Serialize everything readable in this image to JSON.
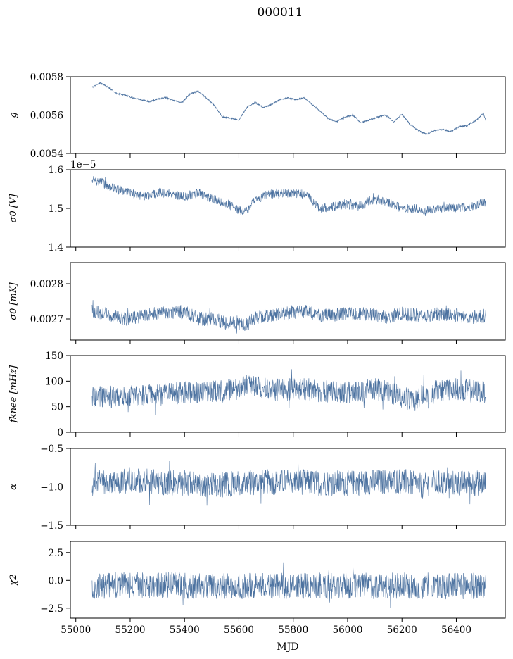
{
  "figure": {
    "title": "000011",
    "xlabel": "MJD",
    "series_color": "#4c72a0"
  },
  "chart_data": [
    {
      "type": "line",
      "ylabel": "g",
      "ylim": [
        0.0054,
        0.0058
      ],
      "yticks": [
        0.0054,
        0.0056,
        0.0058
      ],
      "ytick_labels": [
        "0.0054",
        "0.0056",
        "0.0058"
      ],
      "xlim": [
        54980,
        56580
      ],
      "x_range": [
        55060,
        56510
      ],
      "band": 3.5e-06,
      "x": [
        55060,
        55090,
        55120,
        55150,
        55180,
        55210,
        55240,
        55270,
        55300,
        55330,
        55360,
        55390,
        55420,
        55450,
        55480,
        55510,
        55540,
        55570,
        55600,
        55630,
        55660,
        55690,
        55720,
        55750,
        55780,
        55810,
        55840,
        55870,
        55900,
        55930,
        55960,
        55990,
        56020,
        56050,
        56080,
        56110,
        56140,
        56170,
        56200,
        56230,
        56260,
        56290,
        56320,
        56350,
        56380,
        56410,
        56440,
        56470,
        56500,
        56510
      ],
      "y": [
        0.005745,
        0.005768,
        0.005745,
        0.005712,
        0.005705,
        0.00569,
        0.00568,
        0.00567,
        0.005683,
        0.005692,
        0.005675,
        0.005665,
        0.00571,
        0.005725,
        0.00569,
        0.00565,
        0.00559,
        0.005585,
        0.005575,
        0.00564,
        0.005665,
        0.00564,
        0.005655,
        0.00568,
        0.00569,
        0.00568,
        0.00569,
        0.005655,
        0.00562,
        0.00558,
        0.005565,
        0.00559,
        0.0056,
        0.00556,
        0.005575,
        0.00559,
        0.0056,
        0.005565,
        0.005605,
        0.00555,
        0.00552,
        0.0055,
        0.00552,
        0.005525,
        0.005515,
        0.00554,
        0.005545,
        0.00557,
        0.00561,
        0.00556
      ]
    },
    {
      "type": "line",
      "ylabel": "σ0 [V]",
      "offset_text": "1e−5",
      "ylim": [
        1.4,
        1.6
      ],
      "yticks": [
        1.4,
        1.5,
        1.6
      ],
      "ytick_labels": [
        "1.4",
        "1.5",
        "1.6"
      ],
      "xlim": [
        54980,
        56580
      ],
      "x_range": [
        55060,
        56510
      ],
      "band": 0.012,
      "x": [
        55060,
        55100,
        55150,
        55200,
        55250,
        55300,
        55350,
        55400,
        55450,
        55500,
        55550,
        55600,
        55630,
        55660,
        55700,
        55750,
        55800,
        55850,
        55880,
        55900,
        55950,
        56000,
        56050,
        56080,
        56110,
        56150,
        56200,
        56250,
        56280,
        56300,
        56350,
        56400,
        56450,
        56500,
        56510
      ],
      "y": [
        1.575,
        1.565,
        1.55,
        1.54,
        1.53,
        1.54,
        1.54,
        1.53,
        1.54,
        1.525,
        1.515,
        1.495,
        1.495,
        1.52,
        1.535,
        1.54,
        1.54,
        1.535,
        1.51,
        1.5,
        1.505,
        1.51,
        1.505,
        1.52,
        1.52,
        1.515,
        1.5,
        1.5,
        1.49,
        1.495,
        1.5,
        1.5,
        1.505,
        1.515,
        1.51
      ]
    },
    {
      "type": "line",
      "ylabel": "σ0 [mK]",
      "ylim": [
        0.00264,
        0.00286
      ],
      "yticks": [
        0.0027,
        0.0028
      ],
      "ytick_labels": [
        "0.0027",
        "0.0028"
      ],
      "xlim": [
        54980,
        56580
      ],
      "x_range": [
        55060,
        56510
      ],
      "band": 2e-05,
      "x": [
        55060,
        55120,
        55180,
        55250,
        55300,
        55350,
        55400,
        55450,
        55500,
        55550,
        55600,
        55620,
        55650,
        55700,
        55750,
        55800,
        55850,
        55900,
        55950,
        56000,
        56050,
        56100,
        56150,
        56200,
        56250,
        56300,
        56350,
        56400,
        56450,
        56510
      ],
      "y": [
        0.00272,
        0.002715,
        0.0027,
        0.00271,
        0.002715,
        0.00272,
        0.00272,
        0.0027,
        0.0027,
        0.00269,
        0.00269,
        0.00268,
        0.0027,
        0.00271,
        0.002715,
        0.00272,
        0.00272,
        0.00271,
        0.00271,
        0.002715,
        0.002715,
        0.00271,
        0.002705,
        0.002715,
        0.00271,
        0.00271,
        0.002715,
        0.00271,
        0.002705,
        0.00271
      ]
    },
    {
      "type": "line",
      "ylabel": "fknee [mHz]",
      "ylim": [
        0,
        150
      ],
      "yticks": [
        0,
        50,
        100,
        150
      ],
      "ytick_labels": [
        "0",
        "50",
        "100",
        "150"
      ],
      "xlim": [
        54980,
        56580
      ],
      "x_range": [
        55060,
        56510
      ],
      "band": 22,
      "gaps": [
        [
          55905,
          55910
        ],
        [
          56265,
          56270
        ],
        [
          56300,
          56310
        ]
      ],
      "x": [
        55060,
        55150,
        55250,
        55350,
        55450,
        55550,
        55600,
        55630,
        55650,
        55700,
        55750,
        55800,
        55850,
        55900,
        55950,
        56000,
        56050,
        56100,
        56150,
        56200,
        56250,
        56280,
        56300,
        56320,
        56350,
        56400,
        56450,
        56510
      ],
      "y": [
        68,
        70,
        72,
        75,
        80,
        82,
        85,
        95,
        90,
        85,
        82,
        85,
        85,
        80,
        80,
        78,
        80,
        85,
        80,
        70,
        60,
        80,
        65,
        80,
        82,
        85,
        82,
        78
      ]
    },
    {
      "type": "line",
      "ylabel": "α",
      "ylim": [
        -1.5,
        -0.5
      ],
      "yticks": [
        -1.5,
        -1.0,
        -0.5
      ],
      "ytick_labels": [
        "−1.5",
        "−1.0",
        "−0.5"
      ],
      "xlim": [
        54980,
        56580
      ],
      "x_range": [
        55060,
        56510
      ],
      "band": 0.17,
      "gaps": [
        [
          55905,
          55910
        ],
        [
          56300,
          56310
        ]
      ],
      "x": [
        55060,
        55200,
        55400,
        55500,
        55600,
        55800,
        55900,
        56000,
        56200,
        56280,
        56300,
        56400,
        56510
      ],
      "y": [
        -0.95,
        -0.92,
        -0.95,
        -0.98,
        -0.95,
        -0.93,
        -0.95,
        -0.95,
        -0.92,
        -1.0,
        -0.95,
        -0.95,
        -0.95
      ]
    },
    {
      "type": "line",
      "ylabel": "χ2",
      "ylim": [
        -3.4,
        3.5
      ],
      "yticks": [
        -2.5,
        0.0,
        2.5
      ],
      "ytick_labels": [
        "−2.5",
        "0.0",
        "2.5"
      ],
      "xtick_values": [
        55000,
        55200,
        55400,
        55600,
        55800,
        56000,
        56200,
        56400
      ],
      "xtick_labels": [
        "55000",
        "55200",
        "55400",
        "55600",
        "55800",
        "56000",
        "56200",
        "56400"
      ],
      "xlim": [
        54980,
        56580
      ],
      "x_range": [
        55060,
        56510
      ],
      "band": 1.2,
      "gaps": [
        [
          55905,
          55910
        ],
        [
          56265,
          56270
        ],
        [
          56300,
          56310
        ]
      ],
      "x": [
        55060,
        55300,
        55500,
        55700,
        55900,
        56100,
        56300,
        56510
      ],
      "y": [
        -0.5,
        -0.4,
        -0.5,
        -0.5,
        -0.5,
        -0.5,
        -0.5,
        -0.5
      ]
    }
  ]
}
